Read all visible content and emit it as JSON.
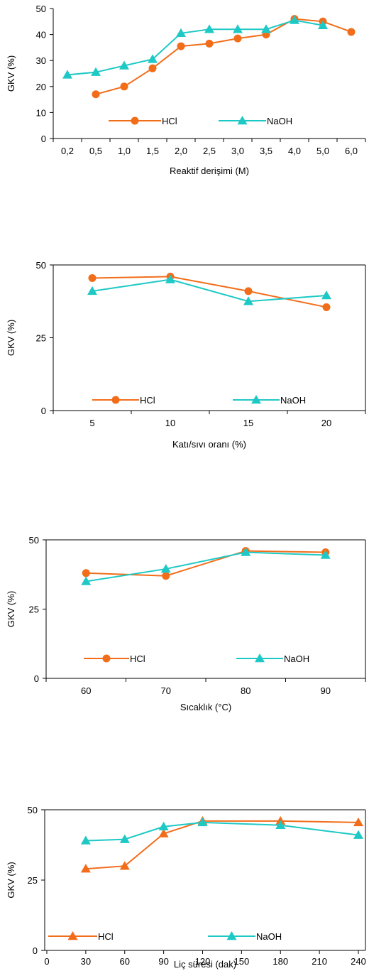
{
  "colors": {
    "hcl": "#f26d1a",
    "naoh": "#1ec9c5",
    "axis": "#000000"
  },
  "chart_data": [
    {
      "type": "line",
      "x_kind": "category",
      "categories": [
        "0,2",
        "0,5",
        "1,0",
        "1,5",
        "2,0",
        "2,5",
        "3,0",
        "3,5",
        "4,0",
        "5,0",
        "6,0"
      ],
      "series": [
        {
          "name": "HCl",
          "marker": "circle",
          "values": [
            null,
            17,
            20,
            27,
            35.5,
            36.5,
            38.5,
            40,
            46,
            45,
            41
          ]
        },
        {
          "name": "NaOH",
          "marker": "triangle",
          "values": [
            24.5,
            25.5,
            28,
            30.5,
            40.5,
            42,
            42,
            42,
            45.5,
            43.5,
            null
          ]
        }
      ],
      "title": "",
      "xlabel": "Reaktif derişimi (M)",
      "ylabel": "GKV (%)",
      "ylim": [
        0,
        50
      ],
      "yticks": [
        0,
        10,
        20,
        30,
        40,
        50
      ],
      "legend": "bottom-inside"
    },
    {
      "type": "line",
      "x_kind": "category",
      "categories": [
        "5",
        "10",
        "15",
        "20"
      ],
      "series": [
        {
          "name": "HCl",
          "marker": "circle",
          "values": [
            45.5,
            46,
            41,
            35.5
          ]
        },
        {
          "name": "NaOH",
          "marker": "triangle",
          "values": [
            41,
            45,
            37.5,
            39.5
          ]
        }
      ],
      "title": "",
      "xlabel": "Katı/sıvı oranı (%)",
      "ylabel": "GKV (%)",
      "ylim": [
        0,
        50
      ],
      "yticks": [
        0,
        25,
        50
      ],
      "legend": "bottom-inside"
    },
    {
      "type": "line",
      "x_kind": "category",
      "categories": [
        "60",
        "70",
        "80",
        "90"
      ],
      "series": [
        {
          "name": "HCl",
          "marker": "circle",
          "values": [
            38,
            37,
            46,
            45.5
          ]
        },
        {
          "name": "NaOH",
          "marker": "triangle",
          "values": [
            35,
            39.5,
            45.5,
            44.5
          ]
        }
      ],
      "title": "",
      "xlabel": "Sıcaklık (°C)",
      "ylabel": "GKV (%)",
      "ylim": [
        0,
        50
      ],
      "yticks": [
        0,
        25,
        50
      ],
      "legend": "bottom-inside"
    },
    {
      "type": "line",
      "x_kind": "numeric",
      "x": [
        30,
        60,
        90,
        120,
        180,
        240
      ],
      "xlim": [
        0,
        240
      ],
      "xticks": [
        0,
        30,
        60,
        90,
        120,
        150,
        180,
        210,
        240
      ],
      "series": [
        {
          "name": "HCl",
          "marker": "triangle",
          "values": [
            29,
            30,
            41.5,
            46,
            46,
            45.5
          ]
        },
        {
          "name": "NaOH",
          "marker": "triangle",
          "values": [
            39,
            39.5,
            44,
            45.5,
            44.5,
            41
          ]
        }
      ],
      "title": "",
      "xlabel": "Liç süresi (dak)",
      "ylabel": "GKV (%)",
      "ylim": [
        0,
        50
      ],
      "yticks": [
        0,
        25,
        50
      ],
      "legend": "bottom-inside"
    }
  ]
}
